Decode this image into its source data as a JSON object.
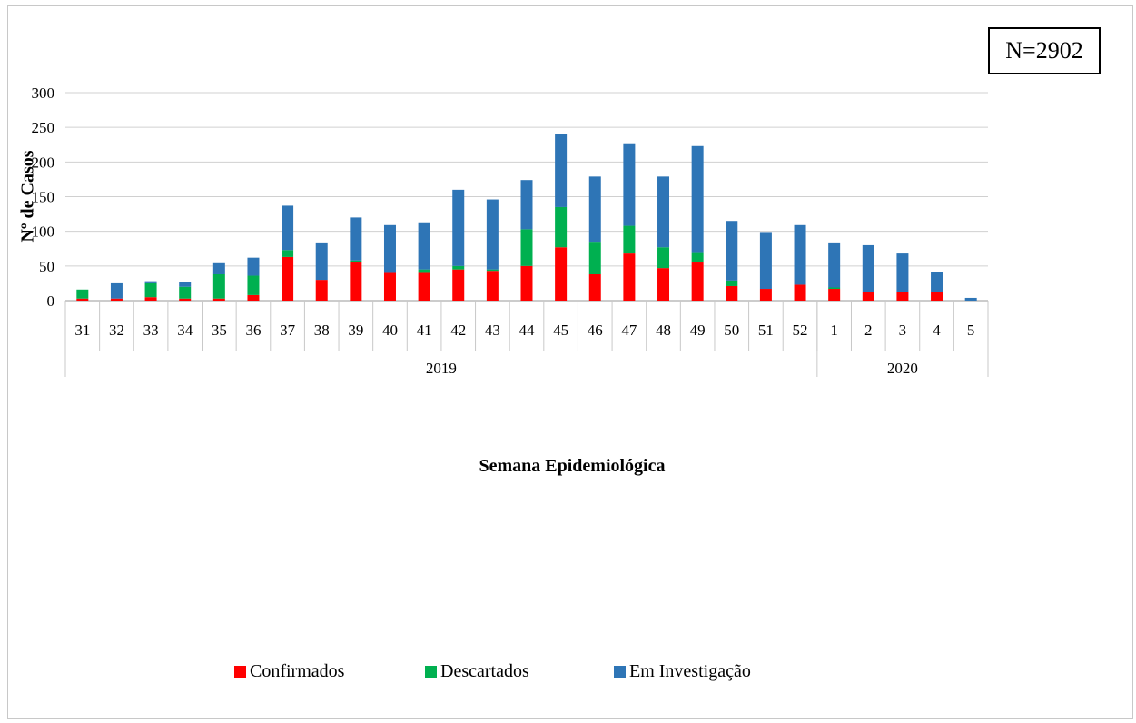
{
  "badge": {
    "text": "N=2902"
  },
  "chart_data": {
    "type": "bar",
    "stacked": true,
    "categories": [
      "31",
      "32",
      "33",
      "34",
      "35",
      "36",
      "37",
      "38",
      "39",
      "40",
      "41",
      "42",
      "43",
      "44",
      "45",
      "46",
      "47",
      "48",
      "49",
      "50",
      "51",
      "52",
      "1",
      "2",
      "3",
      "4",
      "5"
    ],
    "groups": [
      {
        "label": "2019",
        "from": 0,
        "to": 21
      },
      {
        "label": "2020",
        "from": 22,
        "to": 26
      }
    ],
    "series": [
      {
        "name": "Confirmados",
        "color": "#ff0000",
        "values": [
          3,
          3,
          5,
          3,
          3,
          8,
          63,
          30,
          55,
          40,
          40,
          45,
          43,
          50,
          77,
          38,
          68,
          47,
          55,
          21,
          17,
          23,
          17,
          13,
          13,
          13,
          0
        ]
      },
      {
        "name": "Descartados",
        "color": "#00b050",
        "values": [
          13,
          0,
          20,
          17,
          35,
          28,
          10,
          0,
          3,
          0,
          5,
          5,
          2,
          53,
          58,
          47,
          40,
          30,
          15,
          8,
          0,
          0,
          2,
          0,
          0,
          0,
          0
        ]
      },
      {
        "name": "Em Investigação",
        "color": "#2e75b6",
        "values": [
          0,
          22,
          3,
          7,
          16,
          26,
          64,
          54,
          62,
          69,
          68,
          110,
          101,
          71,
          105,
          94,
          119,
          102,
          153,
          86,
          82,
          86,
          65,
          67,
          55,
          28,
          4
        ]
      }
    ],
    "ylim": [
      0,
      300
    ],
    "yticks": [
      0,
      50,
      100,
      150,
      200,
      250,
      300
    ],
    "xlabel": "Semana Epidemiológica",
    "ylabel": "Nº de Casos",
    "grid": true,
    "legend": "bottom"
  }
}
